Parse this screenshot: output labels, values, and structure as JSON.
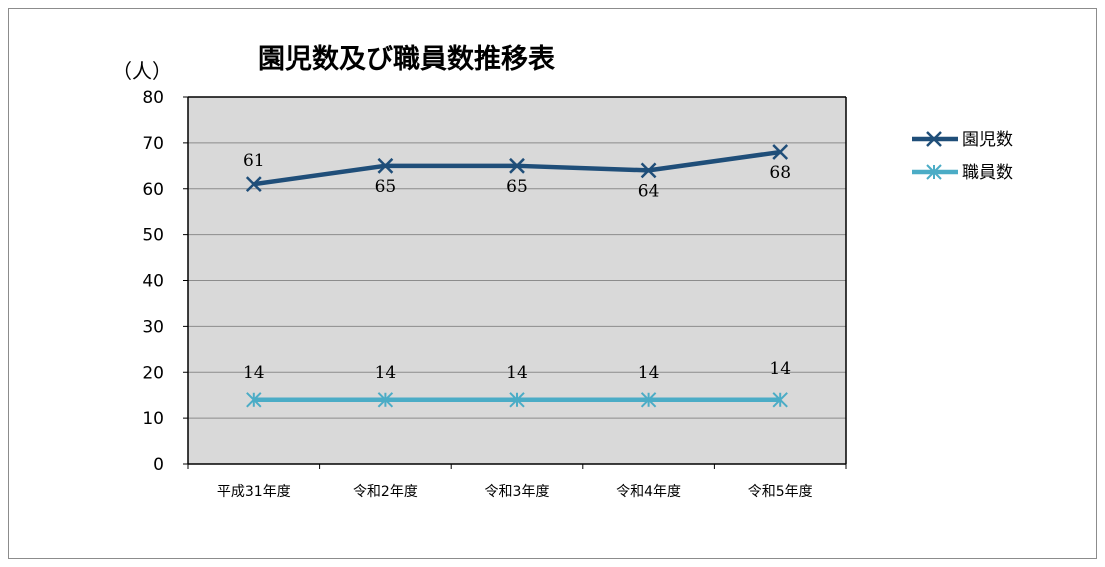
{
  "chart_data": {
    "type": "line",
    "title": "園児数及び職員数推移表",
    "unit_label": "（人）",
    "categories": [
      "平成31年度",
      "令和2年度",
      "令和3年度",
      "令和4年度",
      "令和5年度"
    ],
    "ylim": [
      0,
      80
    ],
    "yticks": [
      0,
      10,
      20,
      30,
      40,
      50,
      60,
      70,
      80
    ],
    "grid": true,
    "legend_position": "right",
    "series": [
      {
        "name": "園児数",
        "values": [
          61,
          65,
          65,
          64,
          68
        ],
        "color": "#1f4e79",
        "marker": "x"
      },
      {
        "name": "職員数",
        "values": [
          14,
          14,
          14,
          14,
          14
        ],
        "color": "#4bacc6",
        "marker": "asterisk"
      }
    ]
  }
}
